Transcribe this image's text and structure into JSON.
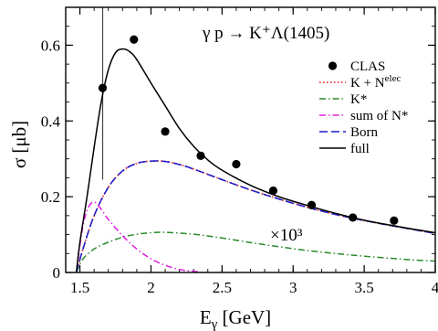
{
  "chart_data": {
    "type": "line",
    "title": "γ p → K⁺Λ(1405)",
    "xlabel": "E_γ [GeV]",
    "ylabel": "σ [μb]",
    "xlim": [
      1.4,
      4.0
    ],
    "ylim": [
      0,
      0.7
    ],
    "xticks": [
      1.5,
      2,
      2.5,
      3,
      3.5,
      4
    ],
    "xtick_labels": [
      "1.5",
      "2",
      "2.5",
      "3",
      "3.5",
      "4"
    ],
    "yticks": [
      0,
      0.2,
      0.4,
      0.6
    ],
    "ytick_labels": [
      "0",
      "0.2",
      "0.4",
      "0.6"
    ],
    "annotation": "×10³",
    "threshold_line_x": 1.66,
    "legend_position": "top-right",
    "series": [
      {
        "name": "CLAS",
        "kind": "points",
        "color": "#000000",
        "points": [
          [
            1.66,
            0.487
          ],
          [
            1.88,
            0.615
          ],
          [
            2.1,
            0.372
          ],
          [
            2.35,
            0.308
          ],
          [
            2.6,
            0.286
          ],
          [
            2.86,
            0.216
          ],
          [
            3.13,
            0.178
          ],
          [
            3.42,
            0.145
          ],
          [
            3.71,
            0.137
          ]
        ]
      },
      {
        "name": "K + N^elec",
        "kind": "line",
        "color": "#e8332b",
        "dash": "dotted",
        "points": [
          [
            1.475,
            0.0
          ],
          [
            1.52,
            0.06
          ],
          [
            1.6,
            0.15
          ],
          [
            1.7,
            0.225
          ],
          [
            1.8,
            0.268
          ],
          [
            1.9,
            0.288
          ],
          [
            2.0,
            0.294
          ],
          [
            2.1,
            0.293
          ],
          [
            2.2,
            0.285
          ],
          [
            2.3,
            0.273
          ],
          [
            2.5,
            0.245
          ],
          [
            2.7,
            0.218
          ],
          [
            2.9,
            0.194
          ],
          [
            3.1,
            0.172
          ],
          [
            3.3,
            0.153
          ],
          [
            3.5,
            0.137
          ],
          [
            3.7,
            0.123
          ],
          [
            3.85,
            0.113
          ],
          [
            4.0,
            0.103
          ]
        ]
      },
      {
        "name": "K*",
        "kind": "line",
        "color": "#2a8a2a",
        "dash": "dashdot",
        "points": [
          [
            1.475,
            0.0
          ],
          [
            1.52,
            0.035
          ],
          [
            1.6,
            0.062
          ],
          [
            1.7,
            0.08
          ],
          [
            1.8,
            0.093
          ],
          [
            1.9,
            0.101
          ],
          [
            2.0,
            0.105
          ],
          [
            2.1,
            0.106
          ],
          [
            2.3,
            0.101
          ],
          [
            2.5,
            0.091
          ],
          [
            2.7,
            0.079
          ],
          [
            2.9,
            0.068
          ],
          [
            3.1,
            0.058
          ],
          [
            3.3,
            0.05
          ],
          [
            3.5,
            0.043
          ],
          [
            3.7,
            0.037
          ],
          [
            3.85,
            0.033
          ],
          [
            4.0,
            0.03
          ]
        ]
      },
      {
        "name": "sum of N*",
        "kind": "line",
        "color": "#e020e0",
        "dash": "dashdot",
        "points": [
          [
            1.475,
            0.0
          ],
          [
            1.52,
            0.12
          ],
          [
            1.56,
            0.172
          ],
          [
            1.6,
            0.186
          ],
          [
            1.64,
            0.172
          ],
          [
            1.7,
            0.14
          ],
          [
            1.8,
            0.097
          ],
          [
            1.9,
            0.062
          ],
          [
            2.0,
            0.036
          ],
          [
            2.1,
            0.019
          ],
          [
            2.2,
            0.008
          ],
          [
            2.3,
            0.003
          ],
          [
            2.4,
            0.0
          ],
          [
            2.6,
            0.0
          ]
        ]
      },
      {
        "name": "Born",
        "kind": "line",
        "color": "#1a1acc",
        "dash": "dashed",
        "points": [
          [
            1.475,
            0.0
          ],
          [
            1.52,
            0.06
          ],
          [
            1.6,
            0.15
          ],
          [
            1.7,
            0.225
          ],
          [
            1.8,
            0.268
          ],
          [
            1.9,
            0.288
          ],
          [
            2.0,
            0.294
          ],
          [
            2.1,
            0.293
          ],
          [
            2.2,
            0.285
          ],
          [
            2.3,
            0.273
          ],
          [
            2.5,
            0.245
          ],
          [
            2.7,
            0.218
          ],
          [
            2.9,
            0.194
          ],
          [
            3.1,
            0.172
          ],
          [
            3.3,
            0.153
          ],
          [
            3.5,
            0.137
          ],
          [
            3.7,
            0.123
          ],
          [
            3.85,
            0.113
          ],
          [
            4.0,
            0.103
          ]
        ]
      },
      {
        "name": "full",
        "kind": "line",
        "color": "#000000",
        "dash": "solid",
        "points": [
          [
            1.475,
            0.0
          ],
          [
            1.5,
            0.08
          ],
          [
            1.55,
            0.2
          ],
          [
            1.6,
            0.33
          ],
          [
            1.65,
            0.45
          ],
          [
            1.7,
            0.535
          ],
          [
            1.75,
            0.58
          ],
          [
            1.8,
            0.59
          ],
          [
            1.85,
            0.583
          ],
          [
            1.9,
            0.562
          ],
          [
            2.0,
            0.5
          ],
          [
            2.1,
            0.44
          ],
          [
            2.2,
            0.38
          ],
          [
            2.3,
            0.333
          ],
          [
            2.4,
            0.297
          ],
          [
            2.5,
            0.27
          ],
          [
            2.7,
            0.23
          ],
          [
            2.9,
            0.2
          ],
          [
            3.1,
            0.177
          ],
          [
            3.3,
            0.156
          ],
          [
            3.5,
            0.138
          ],
          [
            3.7,
            0.124
          ],
          [
            3.85,
            0.114
          ],
          [
            4.0,
            0.105
          ]
        ]
      }
    ]
  }
}
